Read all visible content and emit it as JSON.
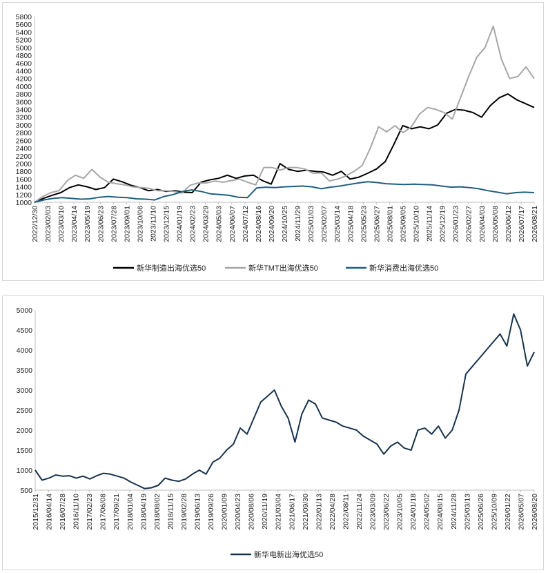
{
  "chart_data": [
    {
      "type": "line",
      "title": "",
      "xlabel": "",
      "ylabel": "",
      "ylim": [
        1000,
        5800
      ],
      "yticks": [
        1000,
        1200,
        1400,
        1600,
        1800,
        2000,
        2200,
        2400,
        2600,
        2800,
        3000,
        3200,
        3400,
        3600,
        3800,
        4000,
        4200,
        4400,
        4600,
        4800,
        5000,
        5200,
        5400,
        5600,
        5800
      ],
      "x_tick_labels": [
        "2022/12/30",
        "2023/02/03",
        "2023/03/10",
        "2023/04/14",
        "2023/05/19",
        "2023/06/23",
        "2023/07/28",
        "2023/09/01",
        "2023/10/06",
        "2023/11/10",
        "2023/12/15",
        "2024/01/19",
        "2024/02/23",
        "2024/03/29",
        "2024/05/03",
        "2024/06/07",
        "2024/07/12",
        "2024/08/16",
        "2024/09/20",
        "2024/10/25",
        "2024/11/29",
        "2025/01/03",
        "2025/02/07",
        "2025/03/14",
        "2025/04/18",
        "2025/05/23",
        "2025/06/27",
        "2025/08/01",
        "2025/09/05",
        "2025/10/10",
        "2025/11/14",
        "2025/12/19",
        "2026/01/23",
        "2026/02/27",
        "2026/04/03",
        "2026/05/08",
        "2026/06/12",
        "2026/07/17",
        "2026/08/21"
      ],
      "grid": false,
      "legend_position": "bottom",
      "series": [
        {
          "name": "新华制造出海优选50",
          "color": "#000000",
          "values": [
            1000,
            1100,
            1180,
            1250,
            1380,
            1450,
            1400,
            1330,
            1380,
            1600,
            1530,
            1440,
            1380,
            1300,
            1330,
            1280,
            1300,
            1260,
            1250,
            1520,
            1580,
            1620,
            1700,
            1620,
            1680,
            1700,
            1560,
            1470,
            2000,
            1850,
            1800,
            1830,
            1800,
            1780,
            1700,
            1800,
            1600,
            1650,
            1750,
            1860,
            2050,
            2500,
            2980,
            2900,
            2950,
            2900,
            3000,
            3300,
            3400,
            3380,
            3320,
            3200,
            3500,
            3700,
            3800,
            3650,
            3550,
            3450
          ]
        },
        {
          "name": "新华TMT出海优选50",
          "color": "#a6a6a6",
          "values": [
            1000,
            1150,
            1250,
            1300,
            1560,
            1700,
            1620,
            1850,
            1650,
            1520,
            1480,
            1450,
            1400,
            1380,
            1360,
            1300,
            1300,
            1280,
            1240,
            1440,
            1500,
            1500,
            1550,
            1520,
            1560,
            1600,
            1520,
            1450,
            1900,
            1900,
            1830,
            1900,
            1900,
            1860,
            1750,
            1760,
            1550,
            1600,
            1680,
            1800,
            1950,
            2400,
            2950,
            2820,
            2980,
            2800,
            2950,
            3280,
            3450,
            3400,
            3320,
            3150,
            3700,
            4250,
            4750,
            5000,
            5550,
            4700,
            4200,
            4250,
            4500,
            4200
          ]
        },
        {
          "name": "新华消费出海优选50",
          "color": "#1f5f80",
          "values": [
            1000,
            1060,
            1100,
            1120,
            1100,
            1080,
            1090,
            1130,
            1150,
            1130,
            1120,
            1090,
            1080,
            1060,
            1150,
            1200,
            1280,
            1320,
            1280,
            1220,
            1200,
            1180,
            1130,
            1120,
            1370,
            1390,
            1380,
            1400,
            1410,
            1420,
            1400,
            1350,
            1390,
            1420,
            1460,
            1500,
            1530,
            1510,
            1480,
            1470,
            1460,
            1470,
            1460,
            1450,
            1420,
            1390,
            1400,
            1380,
            1350,
            1300,
            1260,
            1220,
            1250,
            1260,
            1250
          ]
        }
      ]
    },
    {
      "type": "line",
      "title": "",
      "xlabel": "",
      "ylabel": "",
      "ylim": [
        500,
        5000
      ],
      "yticks": [
        500,
        1000,
        1500,
        2000,
        2500,
        3000,
        3500,
        4000,
        4500,
        5000
      ],
      "x_tick_labels": [
        "2015/12/31",
        "2016/04/14",
        "2016/07/28",
        "2016/11/10",
        "2017/02/23",
        "2017/06/08",
        "2017/09/21",
        "2018/01/04",
        "2018/04/19",
        "2018/08/02",
        "2018/11/15",
        "2019/02/28",
        "2019/06/13",
        "2019/09/26",
        "2020/01/09",
        "2020/04/23",
        "2020/08/06",
        "2020/11/19",
        "2021/03/04",
        "2021/06/17",
        "2021/09/30",
        "2022/01/13",
        "2022/04/28",
        "2022/08/11",
        "2022/11/24",
        "2023/03/09",
        "2023/06/22",
        "2023/10/05",
        "2024/01/18",
        "2024/05/02",
        "2024/08/15",
        "2024/11/28",
        "2025/03/13",
        "2025/06/26",
        "2025/10/09",
        "2026/01/22",
        "2026/05/07",
        "2026/08/20"
      ],
      "grid": false,
      "legend_position": "bottom",
      "series": [
        {
          "name": "新华电新出海优选50",
          "color": "#17324d",
          "values": [
            1000,
            750,
            800,
            880,
            850,
            860,
            800,
            850,
            780,
            860,
            920,
            900,
            850,
            800,
            700,
            620,
            540,
            560,
            620,
            800,
            750,
            720,
            780,
            900,
            1000,
            900,
            1200,
            1300,
            1500,
            1650,
            2050,
            1900,
            2300,
            2700,
            2850,
            3000,
            2600,
            2300,
            1700,
            2400,
            2750,
            2650,
            2300,
            2250,
            2200,
            2100,
            2050,
            2000,
            1850,
            1750,
            1650,
            1400,
            1600,
            1700,
            1550,
            1500,
            2000,
            2050,
            1900,
            2100,
            1800,
            2000,
            2500,
            3400,
            3600,
            3800,
            4000,
            4200,
            4400,
            4100,
            4900,
            4500,
            3600,
            3950
          ]
        }
      ]
    }
  ]
}
